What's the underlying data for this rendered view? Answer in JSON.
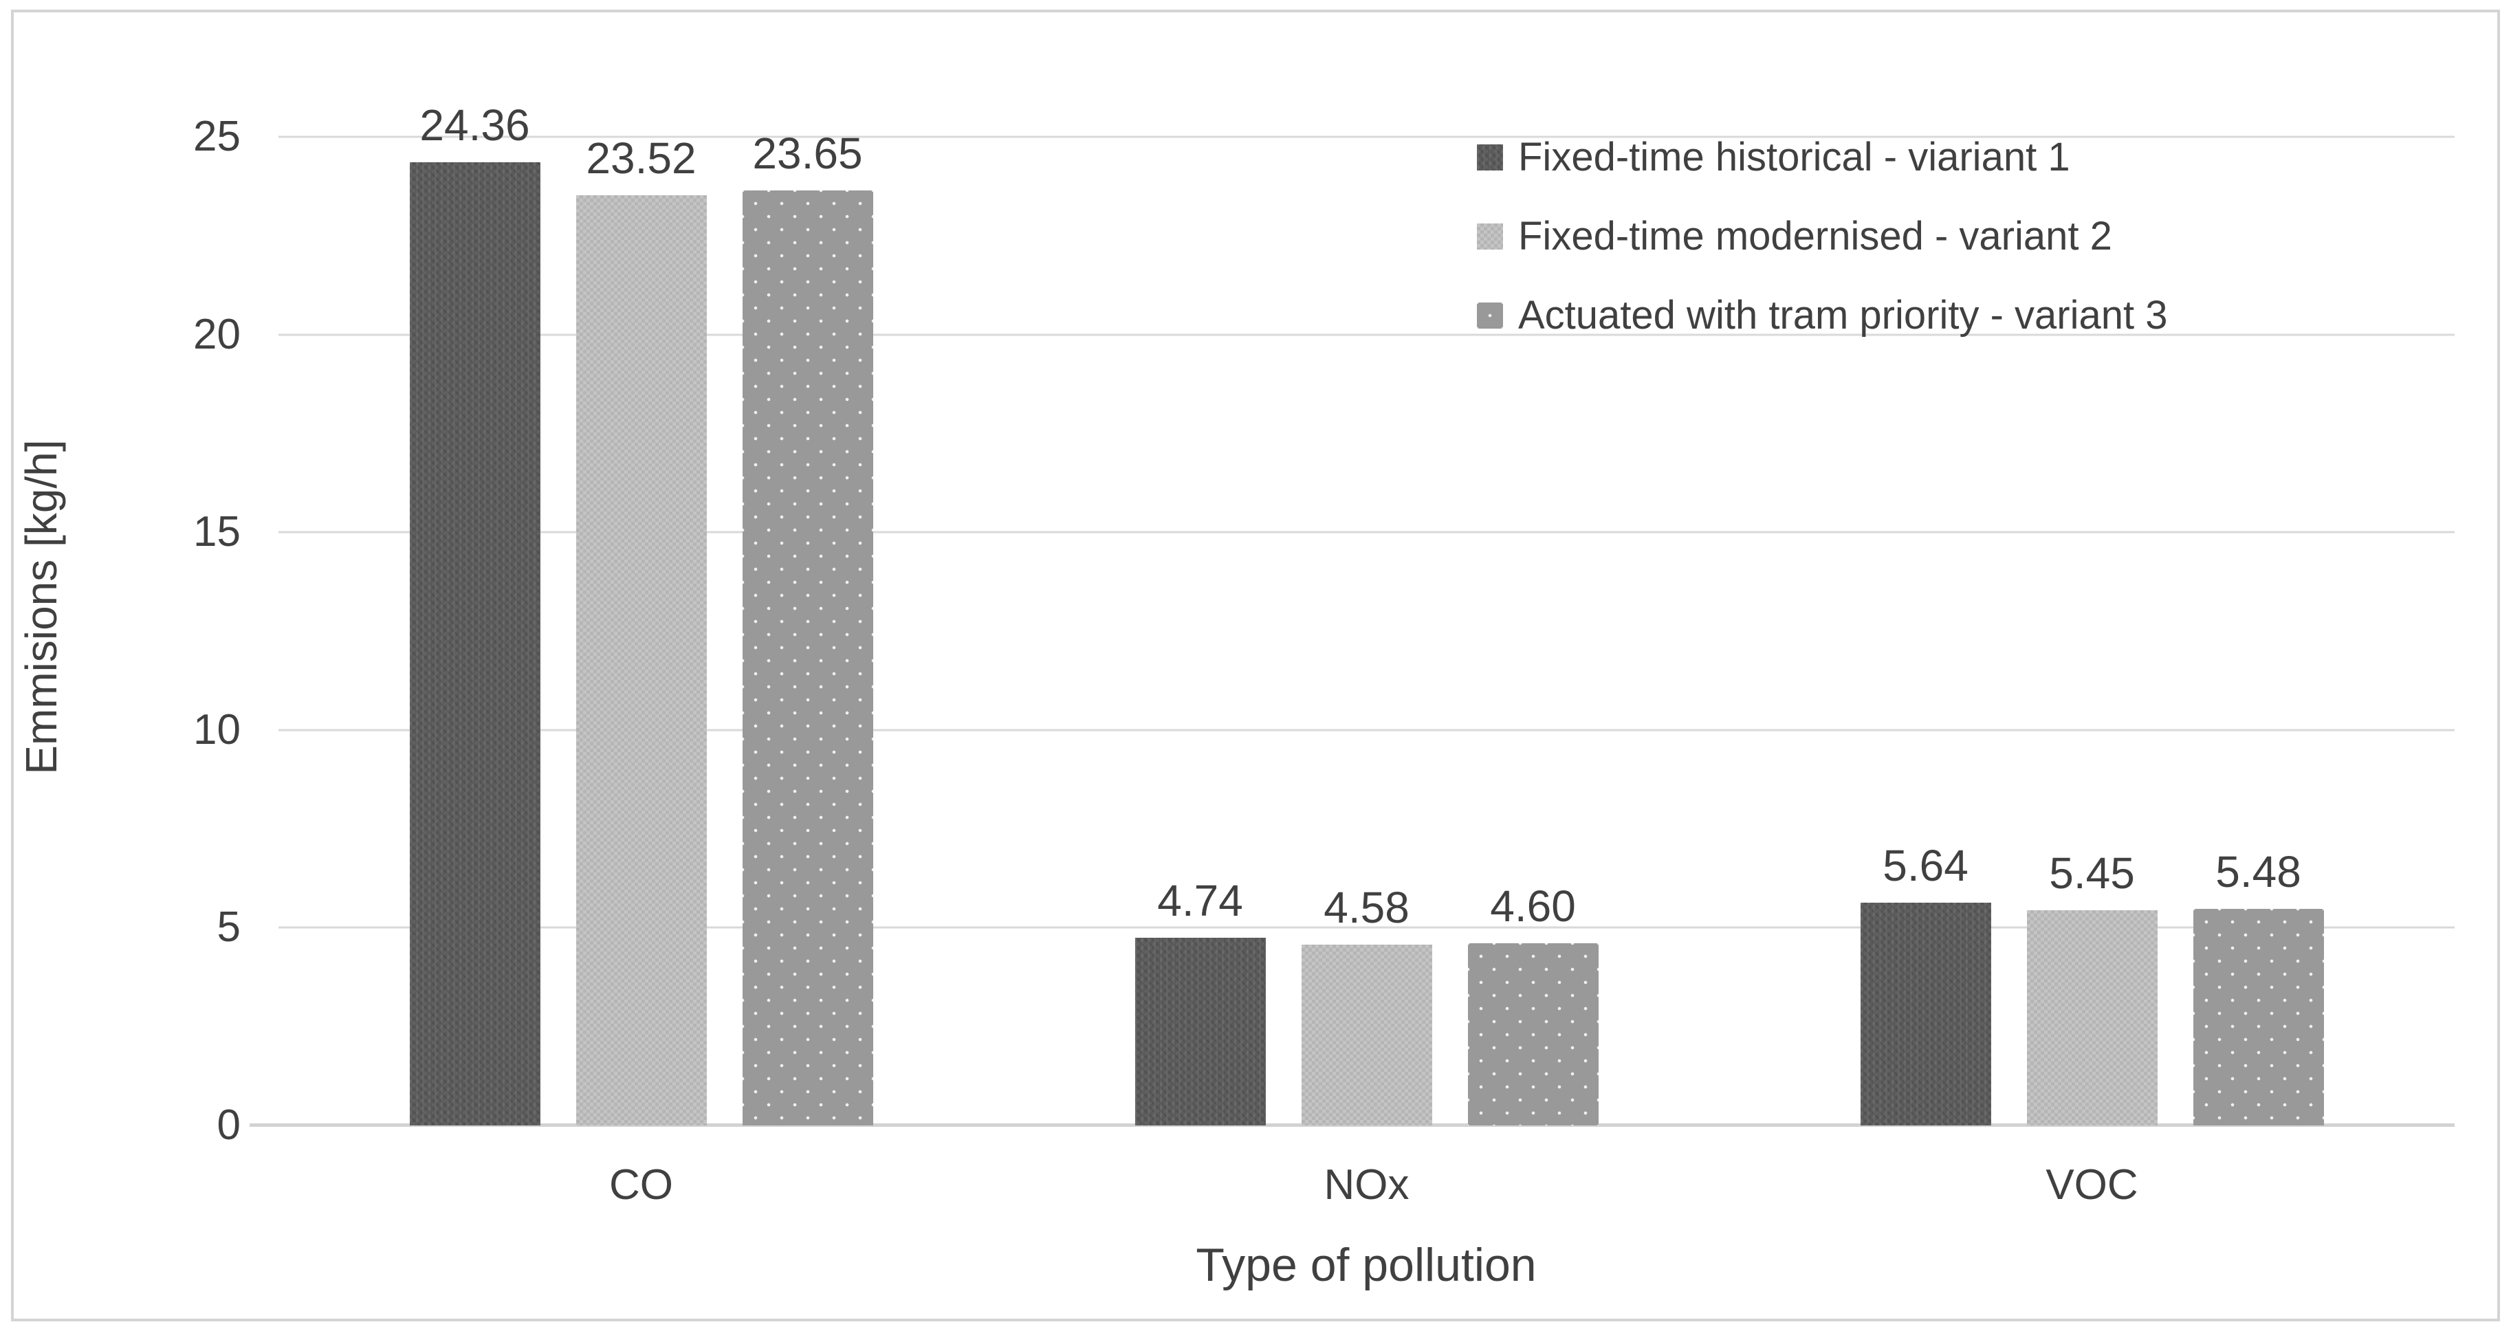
{
  "chart_data": {
    "type": "bar",
    "title": "",
    "categories": [
      "CO",
      "NOx",
      "VOC"
    ],
    "series": [
      {
        "name": "Fixed-time historical - viariant 1",
        "color": "#5a5a5a",
        "pattern": "weave",
        "values": [
          24.36,
          4.74,
          5.64
        ]
      },
      {
        "name": "Fixed-time modernised - variant 2",
        "color": "#c4c4c4",
        "pattern": "checker",
        "values": [
          23.52,
          4.58,
          5.45
        ]
      },
      {
        "name": "Actuated with tram priority - variant 3",
        "color": "#999999",
        "pattern": "dots",
        "values": [
          23.65,
          4.6,
          5.48
        ]
      }
    ],
    "xlabel": "Type of pollution",
    "ylabel": "Emmisions [kg/h]",
    "ylim": [
      0,
      26.2
    ],
    "yticks": [
      0,
      5,
      10,
      15,
      20,
      25
    ],
    "grid": true,
    "legend_position": "top-right",
    "value_labels_decimals": 2
  },
  "colors": {
    "text": "#404040",
    "gridline": "#d9d9d9",
    "axis_line": "#d2d2d2",
    "frame_border": "#d4d4d4",
    "background": "#ffffff"
  }
}
